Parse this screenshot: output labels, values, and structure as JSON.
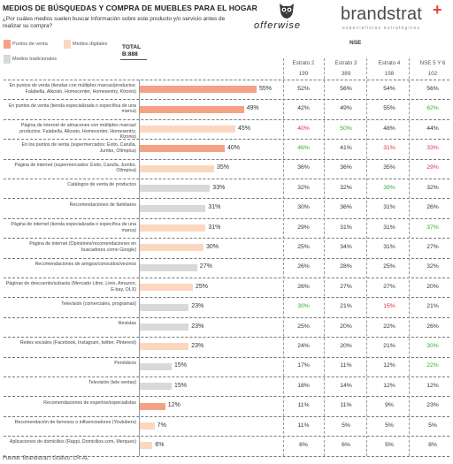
{
  "header": {
    "title": "MEDIOS DE BÚSQUEDAS Y COMPRA DE MUEBLES PARA EL HOGAR",
    "subtitle": "¿Por cuáles medios suelen buscar información sobre este producto y/o servicio antes de realizar su compra?",
    "logo_offerwise": "offerwise",
    "logo_brandstrat": "brandstrat",
    "logo_brandstrat_sub": "especialistas estratégicos"
  },
  "legend": {
    "items": [
      {
        "label": "Puntos de venta",
        "color": "#f4a284"
      },
      {
        "label": "Medios digitales",
        "color": "#fbd7c0"
      },
      {
        "label": "Medios tradicionales",
        "color": "#d9d9d9"
      }
    ]
  },
  "total": {
    "label": "TOTAL",
    "base": "B:888"
  },
  "nse": {
    "label": "NSE",
    "columns": [
      {
        "name": "Estrato 2",
        "base": "199"
      },
      {
        "name": "Estrato 3",
        "base": "389"
      },
      {
        "name": "Estrato 4",
        "base": "198"
      },
      {
        "name": "NSE 5 Y 6",
        "base": "102"
      }
    ]
  },
  "colors": {
    "green": "#3aa83a",
    "red": "#e0303a",
    "neutral": "#333333"
  },
  "chart_data": {
    "type": "bar",
    "orientation": "horizontal",
    "xlim": [
      0,
      100
    ],
    "categories": [
      "En puntos de venta (tiendas con múltiples marcas/productos: Falabella, Alkosto, Homecenter, Homesentry, Ktronix)",
      "En puntos de venta (tienda especializada o específica de una marca)",
      "Página de internet de almacenes con múltiples marcas/ productos: Falabella, Alkosto, Homecenter, Homesentry, Ktronix)",
      "En los puntos de venta (supermercados: Éxito, Carulla, Jumbo, Olímpica)",
      "Página de internet (supermercados: Éxito, Carulla, Jumbo, Olímpica)",
      "Catálogos de venta de productos",
      "Recomendaciones de familiares",
      "Página de internet (tienda especializada o específica de una marca)",
      "Página de internet (Opiniones/recomendaciones en buscadores como Google)",
      "Recomendaciones de amigos/conocidos/vecinos",
      "Páginas de descuento/subasta (Mercado Libre, Linio, Amazon, E-bay, OLX)",
      "Televisión (comerciales, programas)",
      "Revistas",
      "Redes sociales (Facebook, Instagram, twitter, Pinterest)",
      "Periódicos",
      "Televisión (tele ventas)",
      "Recomendaciones de expertos/especialistas",
      "Recomendación de famosos o influenciadores (Youtubers)",
      "Aplicaciones de domicilios (Rappi, Domicilios.com, Merqueo)"
    ],
    "values": [
      55,
      49,
      45,
      40,
      35,
      33,
      31,
      31,
      30,
      27,
      25,
      23,
      23,
      23,
      15,
      15,
      12,
      7,
      6
    ],
    "value_labels": [
      "55%",
      "49%",
      "45%",
      "40%",
      "35%",
      "33%",
      "31%",
      "31%",
      "30%",
      "27%",
      "25%",
      "23%",
      "23%",
      "23%",
      "15%",
      "15%",
      "12%",
      "7%",
      "6%"
    ],
    "bar_types": [
      "punto",
      "punto",
      "digital",
      "punto",
      "digital",
      "tradicional",
      "tradicional",
      "digital",
      "digital",
      "tradicional",
      "digital",
      "tradicional",
      "tradicional",
      "digital",
      "tradicional",
      "tradicional",
      "punto",
      "digital",
      "digital"
    ],
    "nse_table": [
      [
        {
          "v": "52%",
          "c": "n"
        },
        {
          "v": "56%",
          "c": "n"
        },
        {
          "v": "54%",
          "c": "n"
        },
        {
          "v": "56%",
          "c": "n"
        }
      ],
      [
        {
          "v": "42%",
          "c": "n"
        },
        {
          "v": "49%",
          "c": "n"
        },
        {
          "v": "55%",
          "c": "n"
        },
        {
          "v": "62%",
          "c": "g"
        }
      ],
      [
        {
          "v": "40%",
          "c": "r"
        },
        {
          "v": "50%",
          "c": "g"
        },
        {
          "v": "48%",
          "c": "n"
        },
        {
          "v": "44%",
          "c": "n"
        }
      ],
      [
        {
          "v": "46%",
          "c": "g"
        },
        {
          "v": "41%",
          "c": "n"
        },
        {
          "v": "31%",
          "c": "r"
        },
        {
          "v": "33%",
          "c": "r"
        }
      ],
      [
        {
          "v": "36%",
          "c": "n"
        },
        {
          "v": "36%",
          "c": "n"
        },
        {
          "v": "35%",
          "c": "n"
        },
        {
          "v": "29%",
          "c": "r"
        }
      ],
      [
        {
          "v": "32%",
          "c": "n"
        },
        {
          "v": "32%",
          "c": "n"
        },
        {
          "v": "39%",
          "c": "g"
        },
        {
          "v": "32%",
          "c": "n"
        }
      ],
      [
        {
          "v": "30%",
          "c": "n"
        },
        {
          "v": "36%",
          "c": "n"
        },
        {
          "v": "31%",
          "c": "n"
        },
        {
          "v": "26%",
          "c": "n"
        }
      ],
      [
        {
          "v": "29%",
          "c": "n"
        },
        {
          "v": "31%",
          "c": "n"
        },
        {
          "v": "31%",
          "c": "n"
        },
        {
          "v": "37%",
          "c": "g"
        }
      ],
      [
        {
          "v": "25%",
          "c": "n"
        },
        {
          "v": "34%",
          "c": "n"
        },
        {
          "v": "31%",
          "c": "n"
        },
        {
          "v": "27%",
          "c": "n"
        }
      ],
      [
        {
          "v": "26%",
          "c": "n"
        },
        {
          "v": "28%",
          "c": "n"
        },
        {
          "v": "25%",
          "c": "n"
        },
        {
          "v": "32%",
          "c": "n"
        }
      ],
      [
        {
          "v": "26%",
          "c": "n"
        },
        {
          "v": "27%",
          "c": "n"
        },
        {
          "v": "27%",
          "c": "n"
        },
        {
          "v": "20%",
          "c": "n"
        }
      ],
      [
        {
          "v": "30%",
          "c": "g"
        },
        {
          "v": "21%",
          "c": "n"
        },
        {
          "v": "15%",
          "c": "r"
        },
        {
          "v": "21%",
          "c": "n"
        }
      ],
      [
        {
          "v": "25%",
          "c": "n"
        },
        {
          "v": "20%",
          "c": "n"
        },
        {
          "v": "22%",
          "c": "n"
        },
        {
          "v": "26%",
          "c": "n"
        }
      ],
      [
        {
          "v": "24%",
          "c": "n"
        },
        {
          "v": "20%",
          "c": "n"
        },
        {
          "v": "21%",
          "c": "n"
        },
        {
          "v": "30%",
          "c": "g"
        }
      ],
      [
        {
          "v": "17%",
          "c": "n"
        },
        {
          "v": "11%",
          "c": "n"
        },
        {
          "v": "12%",
          "c": "n"
        },
        {
          "v": "22%",
          "c": "g"
        }
      ],
      [
        {
          "v": "18%",
          "c": "n"
        },
        {
          "v": "14%",
          "c": "n"
        },
        {
          "v": "12%",
          "c": "n"
        },
        {
          "v": "12%",
          "c": "n"
        }
      ],
      [
        {
          "v": "11%",
          "c": "n"
        },
        {
          "v": "11%",
          "c": "n"
        },
        {
          "v": "9%",
          "c": "n"
        },
        {
          "v": "23%",
          "c": "n"
        }
      ],
      [
        {
          "v": "11%",
          "c": "n"
        },
        {
          "v": "5%",
          "c": "n"
        },
        {
          "v": "5%",
          "c": "n"
        },
        {
          "v": "5%",
          "c": "n"
        }
      ],
      [
        {
          "v": "6%",
          "c": "n"
        },
        {
          "v": "6%",
          "c": "n"
        },
        {
          "v": "5%",
          "c": "n"
        },
        {
          "v": "8%",
          "c": "n"
        }
      ]
    ]
  },
  "footer": {
    "source": "Fuente: Brandstrat / Gráfico: LR-AL"
  }
}
